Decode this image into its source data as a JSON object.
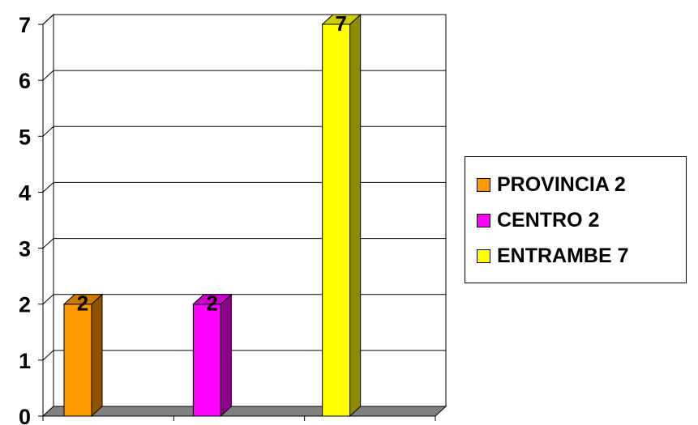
{
  "chart_data": {
    "type": "bar",
    "categories": [
      "PROVINCIA 2",
      "CENTRO 2",
      "ENTRAMBE 7"
    ],
    "values": [
      2,
      2,
      7
    ],
    "data_labels": [
      "2",
      "2",
      "7"
    ],
    "colors": [
      "#FF9900",
      "#FF00FF",
      "#FFFF00"
    ],
    "ylim": [
      0,
      7
    ],
    "yticks": [
      "0",
      "1",
      "2",
      "3",
      "4",
      "5",
      "6",
      "7"
    ],
    "title": "",
    "xlabel": "",
    "ylabel": "",
    "grid": true,
    "legend": "right",
    "style": "3d-column"
  },
  "legend": {
    "items": [
      {
        "label": "PROVINCIA 2",
        "color": "#FF9900"
      },
      {
        "label": "CENTRO 2",
        "color": "#FF00FF"
      },
      {
        "label": "ENTRAMBE 7",
        "color": "#FFFF00"
      }
    ]
  }
}
